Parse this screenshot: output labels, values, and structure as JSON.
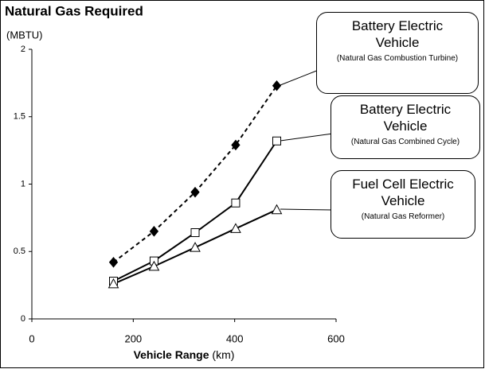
{
  "chart_data": {
    "type": "line",
    "title": "Natural Gas Required",
    "ylabel": "(MBTU)",
    "xlabel": "Vehicle Range",
    "xlabel_unit": "(km)",
    "x": [
      161,
      241,
      322,
      402,
      483
    ],
    "xlim": [
      0,
      600
    ],
    "xticks": [
      0,
      200,
      400,
      600
    ],
    "ylim": [
      0,
      2
    ],
    "yticks": [
      0,
      0.5,
      1,
      1.5,
      2
    ],
    "series": [
      {
        "name": "Battery Electric Vehicle",
        "note": "(Natural Gas Combustion Turbine)",
        "color": "#000000",
        "dashed": true,
        "marker": "diamond",
        "values": [
          0.42,
          0.65,
          0.94,
          1.29,
          1.73
        ]
      },
      {
        "name": "Battery Electric Vehicle",
        "note": "(Natural Gas Combined Cycle)",
        "color": "#000000",
        "dashed": false,
        "marker": "square",
        "values": [
          0.28,
          0.43,
          0.64,
          0.86,
          1.32
        ]
      },
      {
        "name": "Fuel Cell Electric Vehicle",
        "note": "(Natural Gas Reformer)",
        "color": "#000000",
        "dashed": false,
        "marker": "triangle",
        "values": [
          0.26,
          0.39,
          0.53,
          0.67,
          0.81
        ]
      }
    ]
  }
}
